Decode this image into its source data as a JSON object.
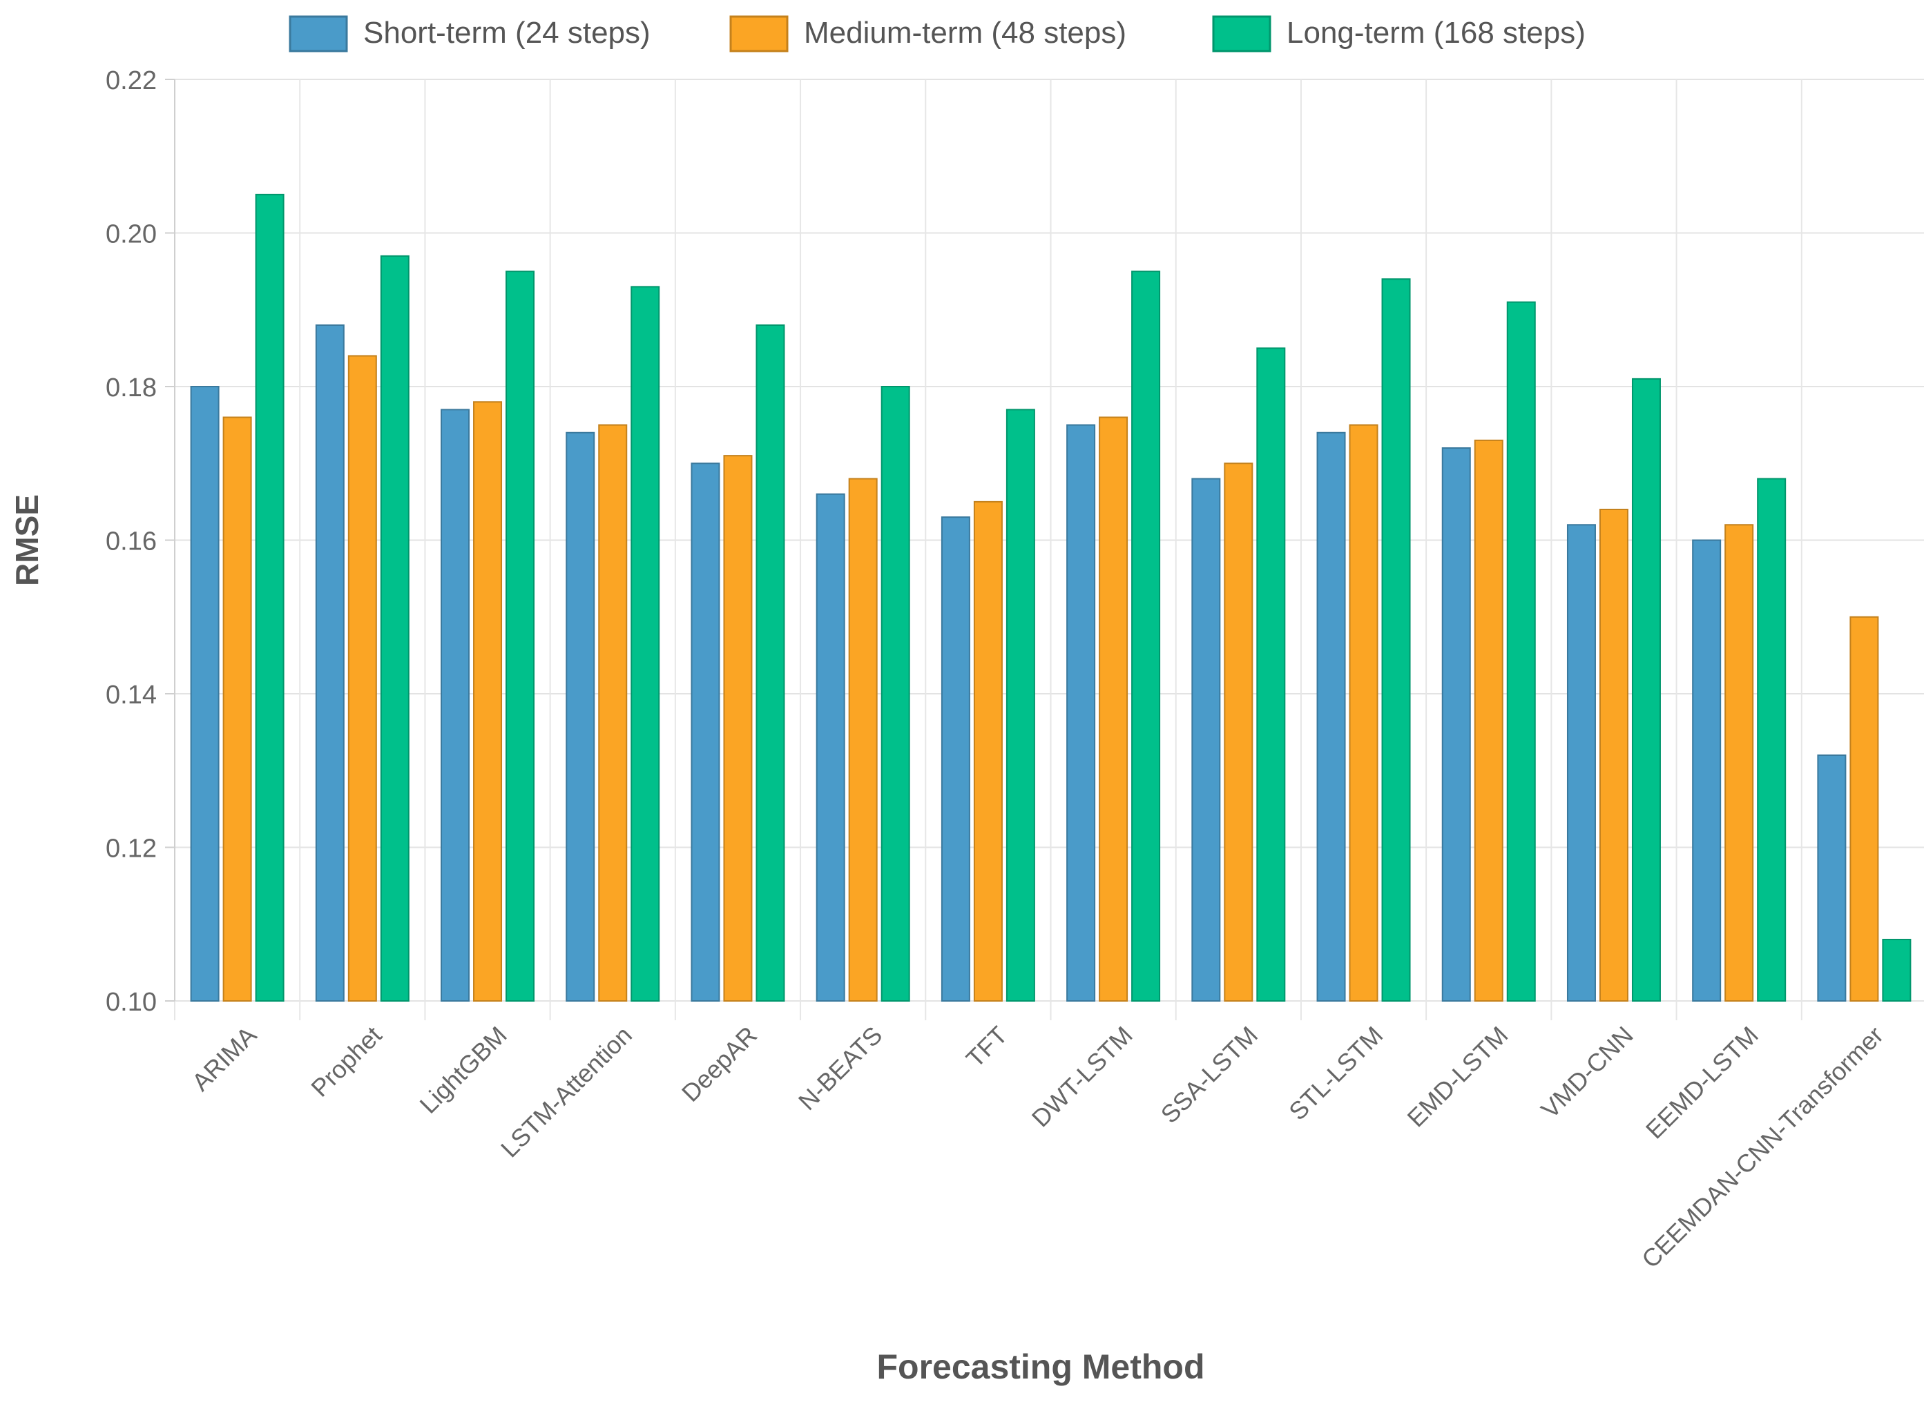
{
  "chart_data": {
    "type": "bar",
    "title": "",
    "xlabel": "Forecasting Method",
    "ylabel": "RMSE",
    "ylim": [
      0.1,
      0.22
    ],
    "yticks": [
      "0.10",
      "0.12",
      "0.14",
      "0.16",
      "0.18",
      "0.20",
      "0.22"
    ],
    "grid": true,
    "legend_position": "top-center",
    "categories": [
      "ARIMA",
      "Prophet",
      "LightGBM",
      "LSTM-Attention",
      "DeepAR",
      "N-BEATS",
      "TFT",
      "DWT-LSTM",
      "SSA-LSTM",
      "STL-LSTM",
      "EMD-LSTM",
      "VMD-CNN",
      "EEMD-LSTM",
      "CEEMDAN-CNN-Transformer"
    ],
    "series": [
      {
        "name": "Short-term (24 steps)",
        "color": "#4a9bc9",
        "values": [
          0.18,
          0.188,
          0.177,
          0.174,
          0.17,
          0.166,
          0.163,
          0.175,
          0.168,
          0.174,
          0.172,
          0.162,
          0.16,
          0.132
        ]
      },
      {
        "name": "Medium-term (48 steps)",
        "color": "#fba524",
        "values": [
          0.176,
          0.184,
          0.178,
          0.175,
          0.171,
          0.168,
          0.165,
          0.176,
          0.17,
          0.175,
          0.173,
          0.164,
          0.162,
          0.15
        ]
      },
      {
        "name": "Long-term (168 steps)",
        "color": "#00c08b",
        "values": [
          0.205,
          0.197,
          0.195,
          0.193,
          0.188,
          0.18,
          0.177,
          0.195,
          0.185,
          0.194,
          0.191,
          0.181,
          0.168,
          0.108
        ]
      }
    ]
  }
}
